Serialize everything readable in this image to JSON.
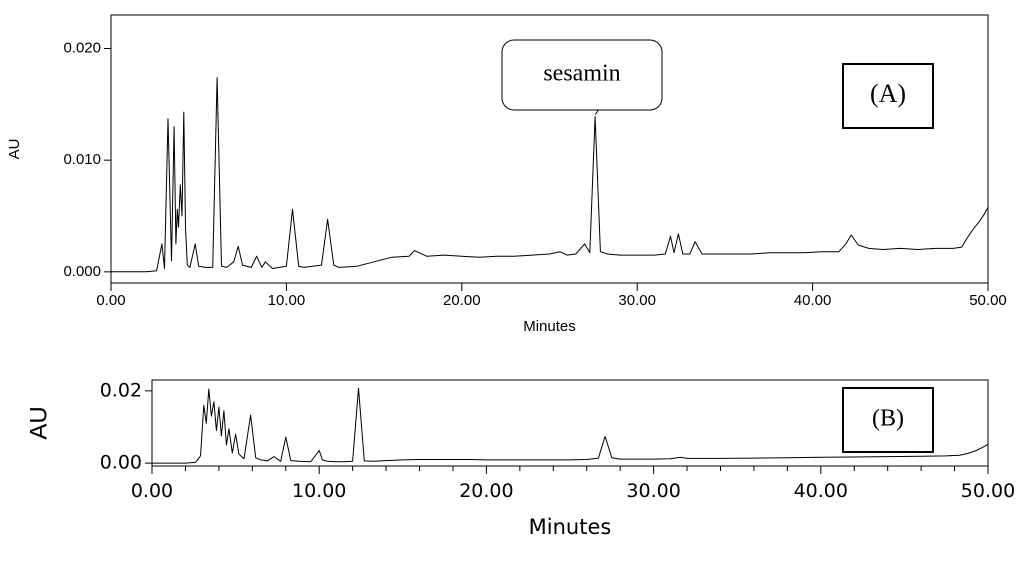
{
  "chart_data": [
    {
      "type": "line",
      "panel": "A",
      "xlabel": "Minutes",
      "ylabel": "AU",
      "xlim": [
        0,
        50
      ],
      "ylim": [
        -0.001,
        0.023
      ],
      "x_ticks": [
        0,
        10,
        20,
        30,
        40,
        50
      ],
      "x_tick_labels": [
        "0.00",
        "10.00",
        "20.00",
        "30.00",
        "40.00",
        "50.00"
      ],
      "y_ticks": [
        0.0,
        0.01,
        0.02
      ],
      "y_tick_labels": [
        "0.000",
        "0.010",
        "0.020"
      ],
      "grid": false,
      "legend_label": "(A)",
      "annotation": {
        "text": "sesamin",
        "x": 27.6,
        "y": 0.0139
      },
      "series": [
        {
          "x": [
            0.0,
            1.0,
            2.0,
            2.6,
            2.9,
            3.05,
            3.25,
            3.45,
            3.6,
            3.7,
            3.78,
            3.85,
            3.95,
            4.05,
            4.15,
            4.25,
            4.35,
            4.5,
            4.8,
            5.0,
            5.4,
            5.8,
            6.05,
            6.3,
            6.6,
            7.0,
            7.25,
            7.5,
            8.0,
            8.3,
            8.6,
            8.8,
            9.2,
            9.6,
            10.0,
            10.35,
            10.7,
            11.0,
            11.5,
            12.0,
            12.35,
            12.7,
            13.0,
            14.0,
            15.0,
            16.0,
            17.0,
            17.3,
            18.0,
            19.0,
            20.0,
            21.0,
            22.0,
            23.0,
            24.0,
            25.0,
            25.6,
            26.0,
            26.5,
            27.0,
            27.3,
            27.6,
            27.9,
            28.3,
            29.0,
            30.0,
            31.0,
            31.6,
            31.9,
            32.1,
            32.35,
            32.6,
            33.0,
            33.3,
            33.7,
            34.5,
            35.5,
            36.5,
            37.5,
            38.5,
            39.5,
            40.5,
            41.5,
            41.9,
            42.2,
            42.6,
            43.2,
            44.0,
            45.0,
            46.0,
            47.0,
            48.0,
            48.5,
            48.8,
            49.1,
            49.5,
            49.8,
            50.0
          ],
          "y": [
            0.0,
            0.0,
            0.0,
            0.0001,
            0.0025,
            0.0003,
            0.0137,
            0.001,
            0.013,
            0.0025,
            0.0056,
            0.004,
            0.0078,
            0.005,
            0.0143,
            0.004,
            0.0006,
            0.0004,
            0.0025,
            0.0005,
            0.0004,
            0.0004,
            0.0174,
            0.0005,
            0.0004,
            0.0009,
            0.0023,
            0.0006,
            0.0004,
            0.0014,
            0.0004,
            0.0009,
            0.0003,
            0.0004,
            0.0005,
            0.0056,
            0.0005,
            0.0004,
            0.0005,
            0.0006,
            0.0047,
            0.0006,
            0.0004,
            0.0005,
            0.0009,
            0.0013,
            0.0014,
            0.0019,
            0.0014,
            0.0015,
            0.0014,
            0.0013,
            0.0014,
            0.0014,
            0.0015,
            0.0016,
            0.0018,
            0.0015,
            0.0016,
            0.0025,
            0.0017,
            0.0139,
            0.0018,
            0.0016,
            0.0015,
            0.0015,
            0.0015,
            0.0016,
            0.0032,
            0.0017,
            0.0034,
            0.0016,
            0.0016,
            0.0027,
            0.0016,
            0.0016,
            0.0016,
            0.0016,
            0.0017,
            0.0017,
            0.0017,
            0.0018,
            0.0018,
            0.0025,
            0.0033,
            0.0024,
            0.0021,
            0.002,
            0.0021,
            0.002,
            0.0021,
            0.0021,
            0.0022,
            0.003,
            0.0037,
            0.0045,
            0.0052,
            0.0058
          ]
        }
      ]
    },
    {
      "type": "line",
      "panel": "B",
      "xlabel": "Minutes",
      "ylabel": "AU",
      "xlim": [
        0,
        50
      ],
      "ylim": [
        -0.0008,
        0.023
      ],
      "x_ticks": [
        0,
        10,
        20,
        30,
        40,
        50
      ],
      "x_tick_labels": [
        "0.00",
        "10.00",
        "20.00",
        "30.00",
        "40.00",
        "50.00"
      ],
      "y_ticks": [
        0.0,
        0.02
      ],
      "y_tick_labels": [
        "0.00",
        "0.02"
      ],
      "grid": false,
      "legend_label": "(B)",
      "series": [
        {
          "x": [
            0.0,
            1.0,
            2.0,
            2.6,
            2.9,
            3.1,
            3.25,
            3.4,
            3.55,
            3.7,
            3.85,
            4.0,
            4.15,
            4.3,
            4.45,
            4.6,
            4.8,
            5.0,
            5.2,
            5.5,
            5.9,
            6.2,
            6.5,
            6.9,
            7.3,
            7.7,
            8.0,
            8.3,
            8.8,
            9.5,
            10.0,
            10.2,
            10.5,
            11.0,
            11.5,
            12.0,
            12.35,
            12.7,
            13.2,
            14.0,
            15.0,
            16.0,
            17.0,
            18.0,
            19.0,
            20.0,
            21.0,
            22.0,
            23.0,
            24.0,
            25.0,
            26.0,
            26.7,
            27.1,
            27.5,
            28.0,
            29.0,
            30.0,
            31.0,
            31.6,
            32.0,
            33.0,
            34.0,
            36.0,
            38.0,
            40.0,
            42.0,
            44.0,
            46.0,
            47.5,
            48.3,
            48.8,
            49.3,
            49.7,
            50.0
          ],
          "y": [
            0.0,
            0.0,
            0.0,
            0.0002,
            0.002,
            0.016,
            0.011,
            0.0205,
            0.013,
            0.017,
            0.009,
            0.0155,
            0.0075,
            0.0145,
            0.005,
            0.0095,
            0.0028,
            0.008,
            0.0025,
            0.0012,
            0.0133,
            0.0015,
            0.0009,
            0.0006,
            0.0018,
            0.0005,
            0.0072,
            0.0007,
            0.0005,
            0.0004,
            0.0035,
            0.0009,
            0.0005,
            0.0004,
            0.0004,
            0.0005,
            0.0207,
            0.0006,
            0.0005,
            0.0007,
            0.0009,
            0.001,
            0.001,
            0.001,
            0.001,
            0.0009,
            0.0009,
            0.0009,
            0.0009,
            0.0009,
            0.0009,
            0.001,
            0.0014,
            0.0074,
            0.0015,
            0.0011,
            0.0011,
            0.0011,
            0.0012,
            0.0016,
            0.0013,
            0.0013,
            0.0013,
            0.0014,
            0.0015,
            0.0016,
            0.0017,
            0.0018,
            0.0019,
            0.002,
            0.0022,
            0.0027,
            0.0035,
            0.0044,
            0.0052
          ]
        }
      ]
    }
  ]
}
